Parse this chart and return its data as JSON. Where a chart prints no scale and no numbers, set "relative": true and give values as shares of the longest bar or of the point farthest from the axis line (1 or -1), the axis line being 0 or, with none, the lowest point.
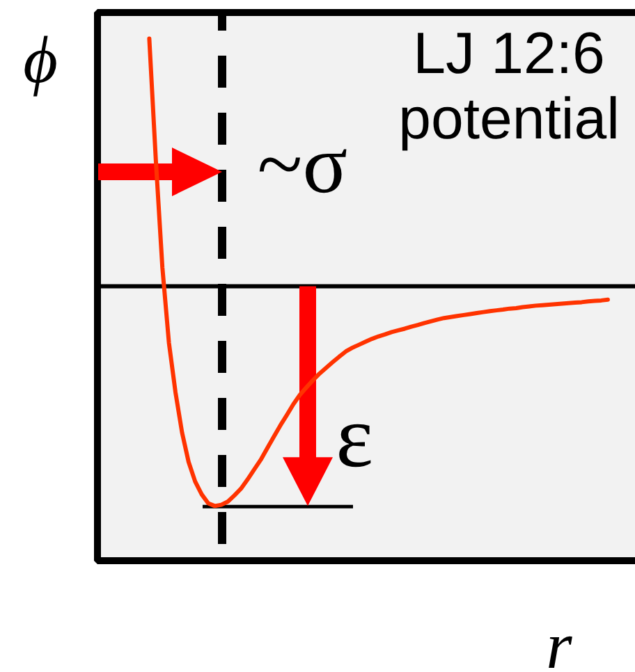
{
  "chart_data": {
    "type": "line",
    "title": "LJ 12:6 potential",
    "xlabel": "r",
    "ylabel": "ϕ",
    "relative": true,
    "line_style": "solid",
    "categories": [
      null,
      null,
      null,
      null,
      null,
      null,
      null,
      null,
      null,
      null,
      null,
      null,
      null,
      null,
      null,
      null,
      null,
      null,
      null,
      null,
      null,
      null,
      null,
      null,
      null,
      null,
      null,
      null,
      null,
      null,
      null,
      null,
      null,
      null,
      null,
      null,
      null,
      null,
      null,
      null,
      null,
      null,
      null,
      null,
      null,
      null,
      null,
      null,
      null,
      null,
      null,
      null,
      null,
      null,
      null,
      null,
      null,
      null,
      null,
      null,
      null,
      null,
      null,
      null,
      null,
      null,
      null,
      null,
      null,
      null,
      null
    ],
    "series": [
      {
        "color": "#ff3300",
        "values": [
          1.0,
          0.51,
          0.076,
          -0.228,
          -0.428,
          -0.59,
          -0.709,
          -0.788,
          -0.84,
          -0.876,
          -0.887,
          -0.882,
          -0.869,
          -0.844,
          -0.817,
          -0.78,
          -0.74,
          -0.701,
          -0.654,
          -0.608,
          -0.562,
          -0.52,
          -0.476,
          -0.438,
          -0.408,
          -0.379,
          -0.352,
          -0.329,
          -0.306,
          -0.284,
          -0.263,
          -0.248,
          -0.236,
          -0.224,
          -0.212,
          -0.202,
          -0.194,
          -0.185,
          -0.178,
          -0.171,
          -0.163,
          -0.156,
          -0.148,
          -0.141,
          -0.134,
          -0.128,
          -0.124,
          -0.12,
          -0.116,
          -0.112,
          -0.108,
          -0.104,
          -0.1,
          -0.097,
          -0.094,
          -0.09,
          -0.088,
          -0.084,
          -0.081,
          -0.078,
          -0.076,
          -0.074,
          -0.072,
          -0.07,
          -0.068,
          -0.066,
          -0.064,
          -0.061,
          -0.059,
          -0.057,
          -0.054
        ]
      }
    ],
    "ref_lines": [
      {
        "axis": "y",
        "value": 0,
        "color": "#000000",
        "line_style": "solid"
      }
    ],
    "annotations": [
      "~σ",
      "ε"
    ]
  }
}
